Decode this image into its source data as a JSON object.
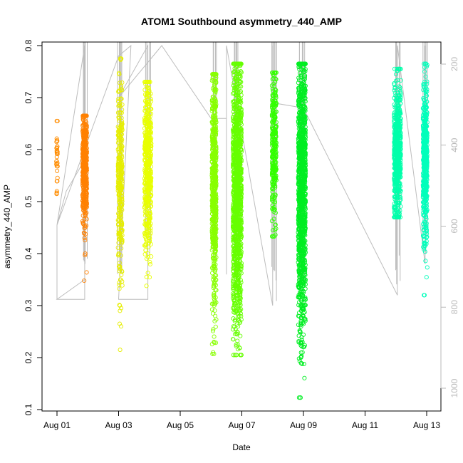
{
  "chart_data": {
    "type": "scatter",
    "title": "ATOM1 Southbound asymmetry_440_AMP",
    "xlabel": "Date",
    "ylabel": "asymmetry_440_AMP",
    "x_ticks": [
      "Aug 01",
      "Aug 03",
      "Aug 05",
      "Aug 07",
      "Aug 09",
      "Aug 11",
      "Aug 13"
    ],
    "x_tick_days": [
      1,
      3,
      5,
      7,
      9,
      11,
      13
    ],
    "xlim_days": [
      0.6,
      13.5
    ],
    "ylim": [
      0.1,
      0.8
    ],
    "y_ticks": [
      0.1,
      0.2,
      0.3,
      0.4,
      0.5,
      0.6,
      0.7,
      0.8
    ],
    "right_axis": {
      "ticks": [
        200,
        400,
        600,
        800,
        1000
      ],
      "range": [
        125,
        1085
      ],
      "direction": "downward",
      "color": "#b8b8b8"
    },
    "clusters": [
      {
        "day": 1.0,
        "color": "#ff8c00",
        "width": 0.04,
        "y_min": 0.515,
        "y_max": 0.655,
        "core_min": 0.52,
        "core_max": 0.655,
        "n": 30,
        "outliers": [
          0.517,
          0.52,
          0.655
        ]
      },
      {
        "day": 1.9,
        "color": "#ff8000",
        "width": 0.14,
        "y_min": 0.348,
        "y_max": 0.665,
        "core_min": 0.48,
        "core_max": 0.66,
        "n": 420,
        "outliers": [
          0.348,
          0.397,
          0.4,
          0.43,
          0.44
        ]
      },
      {
        "day": 3.05,
        "color": "#e6ee00",
        "width": 0.14,
        "y_min": 0.215,
        "y_max": 0.775,
        "core_min": 0.42,
        "core_max": 0.69,
        "n": 320,
        "outliers": [
          0.215,
          0.26,
          0.265,
          0.295,
          0.3,
          0.35,
          0.37,
          0.747,
          0.775
        ]
      },
      {
        "day": 3.95,
        "color": "#e8ff00",
        "width": 0.22,
        "y_min": 0.338,
        "y_max": 0.73,
        "core_min": 0.44,
        "core_max": 0.7,
        "n": 480,
        "outliers": [
          0.338,
          0.355,
          0.4,
          0.42,
          0.72,
          0.73
        ]
      },
      {
        "day": 6.1,
        "color": "#88ff00",
        "width": 0.14,
        "y_min": 0.207,
        "y_max": 0.745,
        "core_min": 0.35,
        "core_max": 0.72,
        "n": 600,
        "outliers": [
          0.207,
          0.21,
          0.23,
          0.27,
          0.28,
          0.3,
          0.32,
          0.745
        ]
      },
      {
        "day": 6.85,
        "color": "#66ff00",
        "width": 0.28,
        "y_min": 0.205,
        "y_max": 0.765,
        "core_min": 0.32,
        "core_max": 0.725,
        "n": 1200,
        "outliers": [
          0.205,
          0.225,
          0.245,
          0.25,
          0.26,
          0.28,
          0.3,
          0.75,
          0.765
        ]
      },
      {
        "day": 8.05,
        "color": "#33ff00",
        "width": 0.14,
        "y_min": 0.433,
        "y_max": 0.748,
        "core_min": 0.48,
        "core_max": 0.73,
        "n": 300,
        "outliers": [
          0.433,
          0.445,
          0.455,
          0.748
        ]
      },
      {
        "day": 8.95,
        "color": "#00ee22",
        "width": 0.24,
        "y_min": 0.123,
        "y_max": 0.765,
        "core_min": 0.3,
        "core_max": 0.74,
        "n": 1200,
        "outliers": [
          0.123,
          0.2,
          0.21,
          0.22,
          0.23,
          0.29,
          0.3,
          0.75,
          0.765
        ]
      },
      {
        "day": 12.05,
        "color": "#00ffaa",
        "width": 0.22,
        "y_min": 0.47,
        "y_max": 0.755,
        "core_min": 0.49,
        "core_max": 0.7,
        "n": 600,
        "outliers": [
          0.47,
          0.48,
          0.745,
          0.755
        ]
      },
      {
        "day": 12.95,
        "color": "#00ffbb",
        "width": 0.14,
        "y_min": 0.32,
        "y_max": 0.765,
        "core_min": 0.45,
        "core_max": 0.7,
        "n": 500,
        "outliers": [
          0.32,
          0.415,
          0.42,
          0.45,
          0.75,
          0.765
        ]
      }
    ],
    "grey_trace": {
      "color": "#bdbdbd",
      "polyline": [
        [
          1.0,
          0.312
        ],
        [
          1.0,
          0.455
        ],
        [
          1.3,
          0.52
        ],
        [
          1.9,
          0.58
        ],
        [
          1.9,
          0.312
        ],
        [
          1.0,
          0.312
        ],
        [
          1.9,
          0.35
        ],
        [
          1.9,
          0.8
        ],
        [
          1.0,
          0.455
        ],
        [
          3.0,
          0.78
        ],
        [
          3.4,
          0.8
        ],
        [
          3.0,
          0.312
        ],
        [
          3.95,
          0.312
        ],
        [
          3.95,
          0.8
        ],
        [
          3.0,
          0.7
        ],
        [
          4.4,
          0.8
        ],
        [
          6.0,
          0.66
        ],
        [
          6.5,
          0.66
        ],
        [
          6.5,
          0.36
        ],
        [
          6.5,
          0.8
        ],
        [
          8.0,
          0.3
        ],
        [
          8.0,
          0.8
        ],
        [
          8.0,
          0.69
        ],
        [
          9.0,
          0.68
        ],
        [
          12.05,
          0.32
        ],
        [
          12.05,
          0.8
        ],
        [
          12.95,
          0.38
        ],
        [
          12.95,
          0.8
        ]
      ],
      "vertical_bundles": [
        {
          "day": 1.9,
          "y_min": 0.35,
          "y_max": 0.8
        },
        {
          "day": 3.05,
          "y_min": 0.35,
          "y_max": 0.8
        },
        {
          "day": 3.95,
          "y_min": 0.38,
          "y_max": 0.8
        },
        {
          "day": 6.1,
          "y_min": 0.38,
          "y_max": 0.8
        },
        {
          "day": 6.85,
          "y_min": 0.35,
          "y_max": 0.8
        },
        {
          "day": 8.05,
          "y_min": 0.3,
          "y_max": 0.8
        },
        {
          "day": 8.95,
          "y_min": 0.31,
          "y_max": 0.8
        },
        {
          "day": 12.05,
          "y_min": 0.32,
          "y_max": 0.8
        },
        {
          "day": 12.95,
          "y_min": 0.38,
          "y_max": 0.8
        }
      ]
    },
    "grid": false,
    "legend": "none"
  }
}
